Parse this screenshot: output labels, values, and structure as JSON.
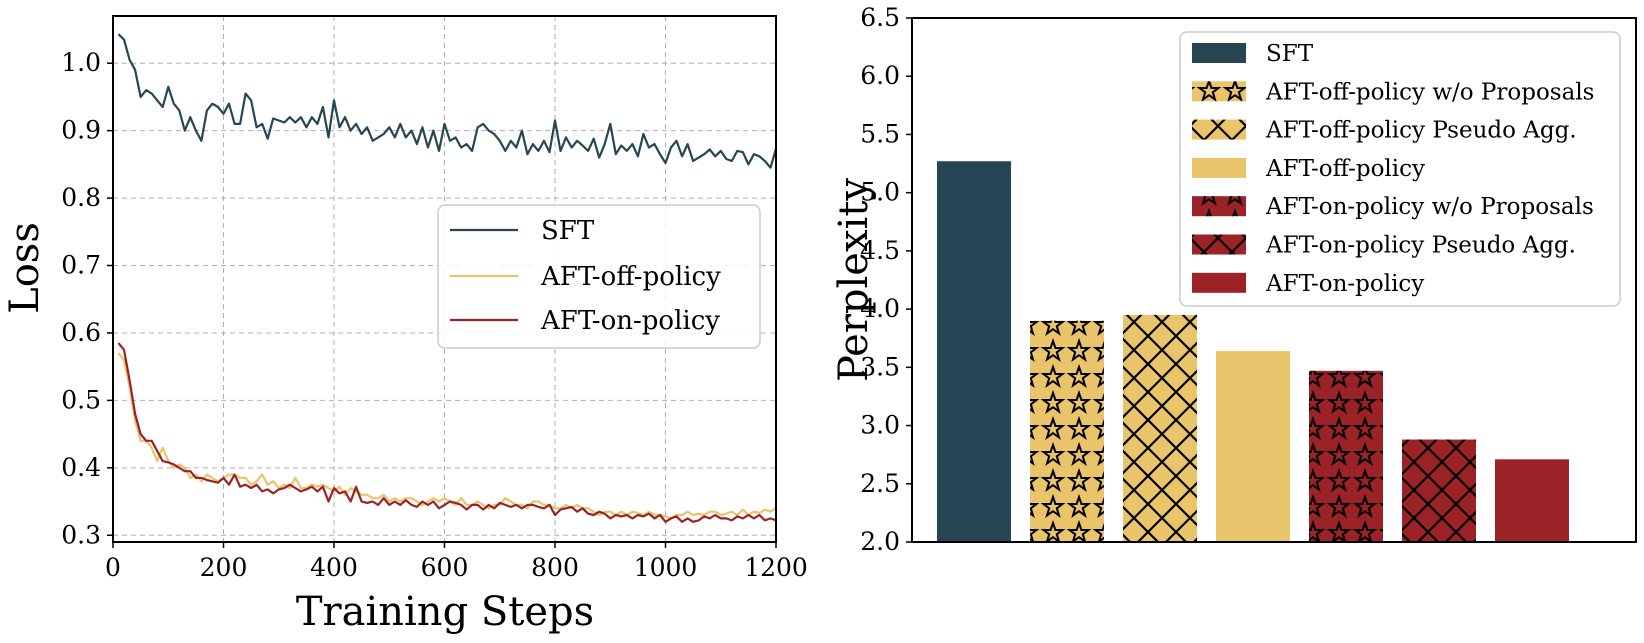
{
  "chart_data": [
    {
      "type": "line",
      "xlabel": "Training Steps",
      "ylabel": "Loss",
      "xlim": [
        0,
        1200
      ],
      "ylim": [
        0.29,
        1.07
      ],
      "xticks": [
        0,
        200,
        400,
        600,
        800,
        1000,
        1200
      ],
      "xtick_labels": [
        "0",
        "200",
        "400",
        "600",
        "800",
        "1000",
        "1200"
      ],
      "yticks": [
        0.3,
        0.4,
        0.5,
        0.6,
        0.7,
        0.8,
        0.9,
        1.0
      ],
      "ytick_labels": [
        "0.3",
        "0.4",
        "0.5",
        "0.6",
        "0.7",
        "0.8",
        "0.9",
        "1.0"
      ],
      "grid": true,
      "legend_position": "center-right",
      "series": [
        {
          "name": "SFT",
          "color": "#264653",
          "x": [
            10,
            20,
            30,
            40,
            50,
            60,
            70,
            80,
            90,
            100,
            110,
            120,
            130,
            140,
            150,
            160,
            170,
            180,
            190,
            200,
            210,
            220,
            230,
            240,
            250,
            260,
            270,
            280,
            290,
            300,
            310,
            320,
            330,
            340,
            350,
            360,
            370,
            380,
            390,
            400,
            410,
            420,
            430,
            440,
            450,
            460,
            470,
            480,
            490,
            500,
            510,
            520,
            530,
            540,
            550,
            560,
            570,
            580,
            590,
            600,
            610,
            620,
            630,
            640,
            650,
            660,
            670,
            680,
            690,
            700,
            710,
            720,
            730,
            740,
            750,
            760,
            770,
            780,
            790,
            800,
            810,
            820,
            830,
            840,
            850,
            860,
            870,
            880,
            890,
            900,
            910,
            920,
            930,
            940,
            950,
            960,
            970,
            980,
            990,
            1000,
            1010,
            1020,
            1030,
            1040,
            1050,
            1060,
            1070,
            1080,
            1090,
            1100,
            1110,
            1120,
            1130,
            1140,
            1150,
            1160,
            1170,
            1180,
            1190,
            1200
          ],
          "values": [
            1.043,
            1.035,
            1.005,
            0.99,
            0.95,
            0.96,
            0.955,
            0.945,
            0.935,
            0.965,
            0.94,
            0.93,
            0.9,
            0.92,
            0.9,
            0.885,
            0.93,
            0.94,
            0.935,
            0.925,
            0.94,
            0.91,
            0.91,
            0.955,
            0.945,
            0.905,
            0.91,
            0.888,
            0.918,
            0.915,
            0.912,
            0.92,
            0.912,
            0.92,
            0.905,
            0.92,
            0.91,
            0.935,
            0.89,
            0.945,
            0.905,
            0.92,
            0.9,
            0.91,
            0.895,
            0.905,
            0.885,
            0.89,
            0.895,
            0.905,
            0.89,
            0.91,
            0.89,
            0.9,
            0.88,
            0.905,
            0.875,
            0.9,
            0.87,
            0.91,
            0.885,
            0.89,
            0.875,
            0.88,
            0.87,
            0.905,
            0.91,
            0.9,
            0.895,
            0.885,
            0.87,
            0.885,
            0.875,
            0.9,
            0.865,
            0.88,
            0.87,
            0.885,
            0.868,
            0.915,
            0.87,
            0.89,
            0.875,
            0.885,
            0.878,
            0.87,
            0.888,
            0.86,
            0.88,
            0.91,
            0.865,
            0.878,
            0.87,
            0.88,
            0.862,
            0.895,
            0.875,
            0.88,
            0.865,
            0.852,
            0.875,
            0.885,
            0.862,
            0.88,
            0.855,
            0.86,
            0.865,
            0.872,
            0.862,
            0.87,
            0.858,
            0.855,
            0.87,
            0.868,
            0.85,
            0.865,
            0.862,
            0.855,
            0.845,
            0.873
          ]
        },
        {
          "name": "AFT-off-policy",
          "color": "#e9c46a",
          "x": [
            10,
            20,
            30,
            40,
            50,
            60,
            70,
            80,
            90,
            100,
            110,
            120,
            130,
            140,
            150,
            160,
            170,
            180,
            190,
            200,
            210,
            220,
            230,
            240,
            250,
            260,
            270,
            280,
            290,
            300,
            310,
            320,
            330,
            340,
            350,
            360,
            370,
            380,
            390,
            400,
            410,
            420,
            430,
            440,
            450,
            460,
            470,
            480,
            490,
            500,
            510,
            520,
            530,
            540,
            550,
            560,
            570,
            580,
            590,
            600,
            610,
            620,
            630,
            640,
            650,
            660,
            670,
            680,
            690,
            700,
            710,
            720,
            730,
            740,
            750,
            760,
            770,
            780,
            790,
            800,
            810,
            820,
            830,
            840,
            850,
            860,
            870,
            880,
            890,
            900,
            910,
            920,
            930,
            940,
            950,
            960,
            970,
            980,
            990,
            1000,
            1010,
            1020,
            1030,
            1040,
            1050,
            1060,
            1070,
            1080,
            1090,
            1100,
            1110,
            1120,
            1130,
            1140,
            1150,
            1160,
            1170,
            1180,
            1190,
            1200
          ],
          "values": [
            0.57,
            0.56,
            0.52,
            0.47,
            0.44,
            0.44,
            0.43,
            0.41,
            0.43,
            0.41,
            0.4,
            0.405,
            0.4,
            0.385,
            0.39,
            0.38,
            0.39,
            0.385,
            0.38,
            0.385,
            0.39,
            0.39,
            0.385,
            0.385,
            0.375,
            0.38,
            0.39,
            0.375,
            0.38,
            0.37,
            0.375,
            0.37,
            0.385,
            0.37,
            0.37,
            0.375,
            0.372,
            0.375,
            0.37,
            0.365,
            0.372,
            0.36,
            0.37,
            0.365,
            0.36,
            0.36,
            0.355,
            0.355,
            0.36,
            0.35,
            0.355,
            0.35,
            0.355,
            0.355,
            0.35,
            0.345,
            0.35,
            0.355,
            0.35,
            0.355,
            0.35,
            0.345,
            0.355,
            0.345,
            0.345,
            0.35,
            0.345,
            0.34,
            0.345,
            0.345,
            0.355,
            0.35,
            0.345,
            0.345,
            0.34,
            0.35,
            0.35,
            0.345,
            0.345,
            0.34,
            0.34,
            0.345,
            0.34,
            0.345,
            0.34,
            0.34,
            0.335,
            0.33,
            0.335,
            0.335,
            0.33,
            0.335,
            0.33,
            0.335,
            0.333,
            0.33,
            0.335,
            0.33,
            0.33,
            0.328,
            0.325,
            0.33,
            0.33,
            0.335,
            0.33,
            0.332,
            0.33,
            0.335,
            0.335,
            0.33,
            0.332,
            0.335,
            0.33,
            0.338,
            0.33,
            0.335,
            0.333,
            0.338,
            0.335,
            0.34
          ]
        },
        {
          "name": "AFT-on-policy",
          "color": "#9b2226",
          "x": [
            10,
            20,
            30,
            40,
            50,
            60,
            70,
            80,
            90,
            100,
            110,
            120,
            130,
            140,
            150,
            160,
            170,
            180,
            190,
            200,
            210,
            220,
            230,
            240,
            250,
            260,
            270,
            280,
            290,
            300,
            310,
            320,
            330,
            340,
            350,
            360,
            370,
            380,
            390,
            400,
            410,
            420,
            430,
            440,
            450,
            460,
            470,
            480,
            490,
            500,
            510,
            520,
            530,
            540,
            550,
            560,
            570,
            580,
            590,
            600,
            610,
            620,
            630,
            640,
            650,
            660,
            670,
            680,
            690,
            700,
            710,
            720,
            730,
            740,
            750,
            760,
            770,
            780,
            790,
            800,
            810,
            820,
            830,
            840,
            850,
            860,
            870,
            880,
            890,
            900,
            910,
            920,
            930,
            940,
            950,
            960,
            970,
            980,
            990,
            1000,
            1010,
            1020,
            1030,
            1040,
            1050,
            1060,
            1070,
            1080,
            1090,
            1100,
            1110,
            1120,
            1130,
            1140,
            1150,
            1160,
            1170,
            1180,
            1190,
            1200
          ],
          "values": [
            0.585,
            0.575,
            0.53,
            0.48,
            0.45,
            0.44,
            0.44,
            0.425,
            0.41,
            0.408,
            0.405,
            0.4,
            0.395,
            0.395,
            0.385,
            0.385,
            0.382,
            0.38,
            0.378,
            0.385,
            0.375,
            0.39,
            0.372,
            0.375,
            0.37,
            0.375,
            0.365,
            0.368,
            0.362,
            0.368,
            0.37,
            0.375,
            0.37,
            0.365,
            0.368,
            0.372,
            0.365,
            0.372,
            0.35,
            0.37,
            0.362,
            0.365,
            0.35,
            0.372,
            0.35,
            0.348,
            0.35,
            0.345,
            0.355,
            0.345,
            0.35,
            0.345,
            0.352,
            0.345,
            0.342,
            0.35,
            0.345,
            0.35,
            0.34,
            0.345,
            0.35,
            0.348,
            0.345,
            0.338,
            0.345,
            0.345,
            0.338,
            0.345,
            0.34,
            0.348,
            0.345,
            0.342,
            0.345,
            0.34,
            0.345,
            0.345,
            0.342,
            0.34,
            0.345,
            0.33,
            0.338,
            0.34,
            0.342,
            0.335,
            0.34,
            0.332,
            0.33,
            0.335,
            0.332,
            0.325,
            0.33,
            0.328,
            0.33,
            0.325,
            0.33,
            0.328,
            0.332,
            0.325,
            0.33,
            0.32,
            0.325,
            0.328,
            0.32,
            0.325,
            0.32,
            0.322,
            0.328,
            0.325,
            0.33,
            0.325,
            0.325,
            0.322,
            0.328,
            0.325,
            0.33,
            0.325,
            0.33,
            0.322,
            0.325,
            0.322
          ]
        }
      ]
    },
    {
      "type": "bar",
      "xlabel": "",
      "ylabel": "Perplexity",
      "ylim": [
        2.0,
        6.5
      ],
      "yticks": [
        2.0,
        2.5,
        3.0,
        3.5,
        4.0,
        4.5,
        5.0,
        5.5,
        6.0,
        6.5
      ],
      "ytick_labels": [
        "2.0",
        "2.5",
        "3.0",
        "3.5",
        "4.0",
        "4.5",
        "5.0",
        "5.5",
        "6.0",
        "6.5"
      ],
      "grid": false,
      "legend_position": "top-right",
      "categories": [
        "SFT",
        "AFT-off-policy w/o Proposals",
        "AFT-off-policy Pseudo Agg.",
        "AFT-off-policy",
        "AFT-on-policy w/o Proposals",
        "AFT-on-policy Pseudo Agg.",
        "AFT-on-policy"
      ],
      "values": [
        5.27,
        3.9,
        3.95,
        3.64,
        3.47,
        2.88,
        2.71
      ],
      "colors": [
        "#264653",
        "#e9c46a",
        "#e9c46a",
        "#e9c46a",
        "#9b2226",
        "#9b2226",
        "#9b2226"
      ],
      "hatches": [
        "none",
        "star",
        "cross",
        "none",
        "star",
        "cross",
        "none"
      ]
    }
  ]
}
